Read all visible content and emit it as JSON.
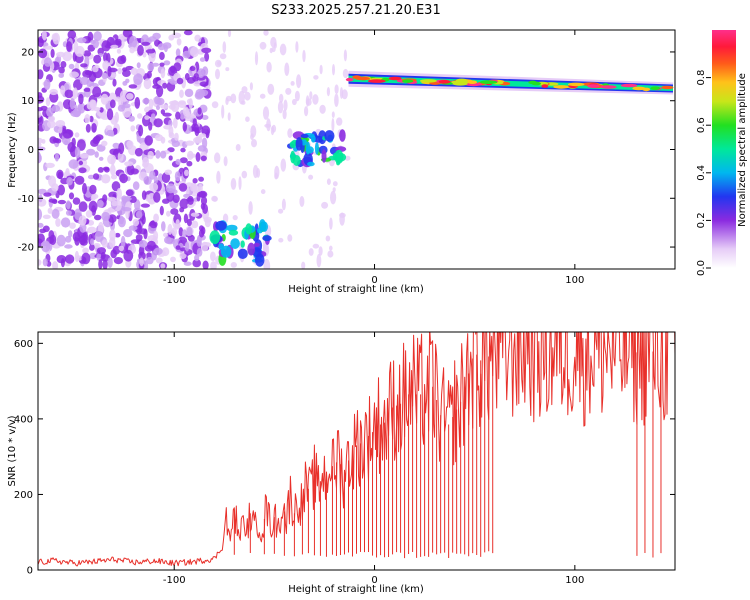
{
  "title": "S233.2025.257.21.20.E31",
  "chart_data": [
    {
      "type": "heatmap",
      "name": "spectrogram",
      "xlabel": "Height of straight line (km)",
      "ylabel": "Frequency (Hz)",
      "xlim": [
        -168,
        150
      ],
      "ylim": [
        -24.5,
        24.5
      ],
      "xticks": [
        -100,
        0,
        100
      ],
      "xtick_labels": [
        "-100",
        "0",
        "100"
      ],
      "yticks": [
        20,
        10,
        0,
        -10,
        -20
      ],
      "ytick_labels": [
        "20",
        "10",
        "0",
        "-10",
        "-20"
      ],
      "colorbar": {
        "label": "Normalized spectral amplitude",
        "range": [
          0,
          1
        ],
        "ticks": [
          0.0,
          0.2,
          0.4,
          0.6,
          0.8
        ],
        "tick_labels": [
          "0.0",
          "0.2",
          "0.4",
          "0.6",
          "0.8"
        ]
      },
      "features": [
        {
          "name": "noise-field",
          "x_range": [
            -168,
            -83
          ],
          "freq_range": [
            -24,
            24
          ],
          "amplitude": 0.15
        },
        {
          "name": "low-band-patch",
          "x_range": [
            -80,
            -52
          ],
          "freq_range": [
            -23,
            -15
          ],
          "amplitude": 0.45
        },
        {
          "name": "mid-band-patch",
          "x_range": [
            -42,
            -16
          ],
          "freq_range": [
            -3,
            3
          ],
          "amplitude": 0.45
        },
        {
          "name": "carrier-line",
          "x_range": [
            -13,
            149
          ],
          "freq_start": 14.5,
          "freq_end": 12.5,
          "amplitude": 0.9
        }
      ]
    },
    {
      "type": "line",
      "name": "snr",
      "xlabel": "Height of straight line (km)",
      "ylabel": "SNR (10 * v/v)",
      "xlim": [
        -168,
        150
      ],
      "ylim": [
        0,
        630
      ],
      "xticks": [
        -100,
        0,
        100
      ],
      "xtick_labels": [
        "-100",
        "0",
        "100"
      ],
      "yticks": [
        0,
        200,
        400,
        600
      ],
      "ytick_labels": [
        "0",
        "200",
        "400",
        "600"
      ],
      "color": "#e8302a",
      "series": [
        {
          "name": "SNR",
          "x": [
            -168,
            -160,
            -150,
            -140,
            -130,
            -120,
            -110,
            -100,
            -90,
            -85,
            -80,
            -76,
            -74,
            -72,
            -70,
            -68,
            -66,
            -64,
            -62,
            -60,
            -58,
            -56,
            -54,
            -52,
            -50,
            -48,
            -46,
            -44,
            -42,
            -40,
            -38,
            -36,
            -34,
            -32,
            -30,
            -28,
            -26,
            -24,
            -22,
            -20,
            -18,
            -16,
            -14,
            -12,
            -10,
            -8,
            -6,
            -4,
            -2,
            0,
            2,
            4,
            6,
            8,
            10,
            12,
            14,
            16,
            18,
            20,
            22,
            24,
            26,
            28,
            30,
            32,
            34,
            36,
            38,
            40,
            42,
            44,
            46,
            48,
            50,
            52,
            54,
            56,
            58,
            60,
            62,
            64,
            66,
            68,
            70,
            72,
            74,
            76,
            80,
            85,
            90,
            95,
            100,
            105,
            110,
            115,
            120,
            125,
            130,
            135,
            140,
            145,
            150
          ],
          "y": [
            20,
            25,
            18,
            22,
            28,
            20,
            24,
            18,
            22,
            26,
            30,
            60,
            140,
            80,
            160,
            100,
            120,
            90,
            150,
            110,
            130,
            100,
            170,
            120,
            140,
            110,
            180,
            130,
            200,
            150,
            190,
            170,
            230,
            200,
            250,
            210,
            260,
            240,
            300,
            250,
            320,
            240,
            280,
            300,
            320,
            340,
            330,
            360,
            350,
            380,
            390,
            380,
            400,
            420,
            440,
            430,
            450,
            460,
            470,
            480,
            450,
            480,
            470,
            490,
            480,
            420,
            400,
            390,
            380,
            430,
            420,
            470,
            500,
            540,
            580,
            560,
            550,
            570,
            560,
            580,
            560,
            570,
            580,
            590,
            600,
            595,
            590,
            600,
            590,
            580,
            590,
            585,
            595,
            580,
            590,
            585,
            580,
            585,
            575,
            580,
            578,
            575,
            570
          ]
        }
      ],
      "dropouts": [
        -70,
        -62,
        -55,
        -50,
        -45,
        -40,
        -36,
        -33,
        -30,
        -27,
        -24,
        -21,
        -19,
        -17,
        -15,
        -13,
        -11,
        -9,
        -7,
        -5,
        -3,
        -1,
        1,
        3,
        5,
        7,
        9,
        11,
        13,
        15,
        17,
        19,
        21,
        23,
        25,
        27,
        29,
        31,
        33,
        35,
        37,
        39,
        41,
        43,
        45,
        47,
        49,
        51,
        53,
        55,
        57,
        59,
        131,
        135,
        139,
        143
      ]
    }
  ]
}
